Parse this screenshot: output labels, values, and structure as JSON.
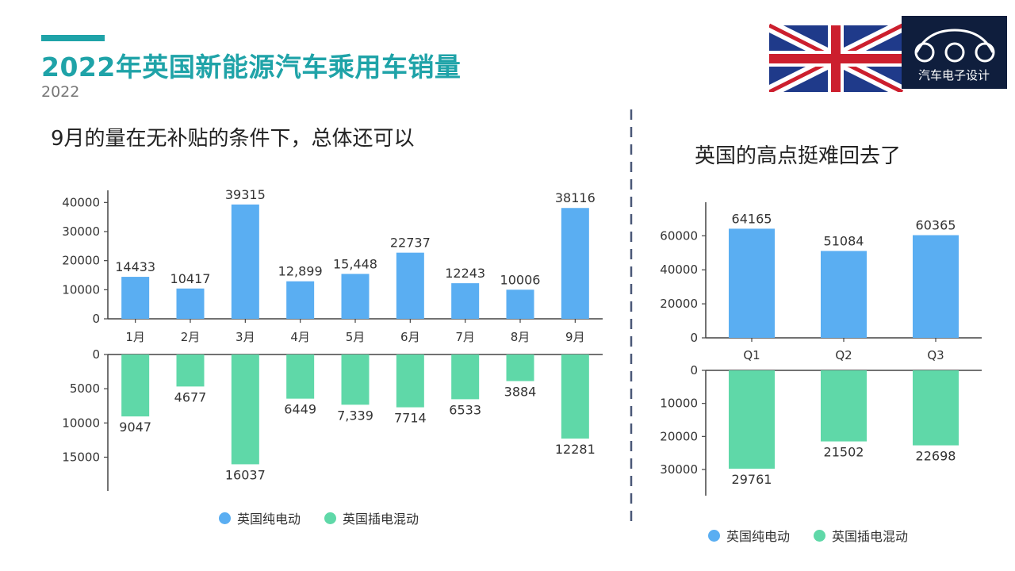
{
  "header": {
    "title": "2022年英国新能源汽车乘用车销量",
    "subtitle": "2022",
    "accent_color": "#1fa3a8",
    "title_color": "#1fa3a8"
  },
  "logo": {
    "text": "汽车电子设计",
    "flag": "uk-flag"
  },
  "left": {
    "heading": "9月的量在无补贴的条件下，总体还可以"
  },
  "right": {
    "heading": "英国的高点挺难回去了"
  },
  "colors": {
    "bev": "#5aaef2",
    "phev": "#5fd8a8",
    "axis": "#444444",
    "divider": "#4a5878"
  },
  "chart_data": [
    {
      "type": "bar",
      "title": "",
      "categories": [
        "1月",
        "2月",
        "3月",
        "4月",
        "5月",
        "6月",
        "7月",
        "8月",
        "9月"
      ],
      "series": [
        {
          "name": "英国纯电动",
          "values": [
            14433,
            10417,
            39315,
            12899,
            15448,
            22737,
            12243,
            10006,
            38116
          ],
          "labels": [
            "14433",
            "10417",
            "39315",
            "12,899",
            "15,448",
            "22737",
            "12243",
            "10006",
            "38116"
          ],
          "direction": "up",
          "ylim": [
            0,
            42000
          ],
          "yticks": [
            0,
            10000,
            20000,
            30000,
            40000
          ]
        },
        {
          "name": "英国插电混动",
          "values": [
            9047,
            4677,
            16037,
            6449,
            7339,
            7714,
            6533,
            3884,
            12281
          ],
          "labels": [
            "9047",
            "4677",
            "16037",
            "6449",
            "7,339",
            "7714",
            "6533",
            "3884",
            "12281"
          ],
          "direction": "down",
          "ylim": [
            0,
            19000
          ],
          "yticks": [
            0,
            5000,
            10000,
            15000
          ]
        }
      ],
      "legend": "bottom",
      "grid": false
    },
    {
      "type": "bar",
      "title": "",
      "categories": [
        "Q1",
        "Q2",
        "Q3"
      ],
      "series": [
        {
          "name": "英国纯电动",
          "values": [
            64165,
            51084,
            60365
          ],
          "labels": [
            "64165",
            "51084",
            "60365"
          ],
          "direction": "up",
          "ylim": [
            0,
            76000
          ],
          "yticks": [
            0,
            20000,
            40000,
            60000
          ]
        },
        {
          "name": "英国插电混动",
          "values": [
            29761,
            21502,
            22698
          ],
          "labels": [
            "29761",
            "21502",
            "22698"
          ],
          "direction": "down",
          "ylim": [
            0,
            36000
          ],
          "yticks": [
            0,
            10000,
            20000,
            30000
          ]
        }
      ],
      "legend": "bottom",
      "grid": false
    }
  ]
}
